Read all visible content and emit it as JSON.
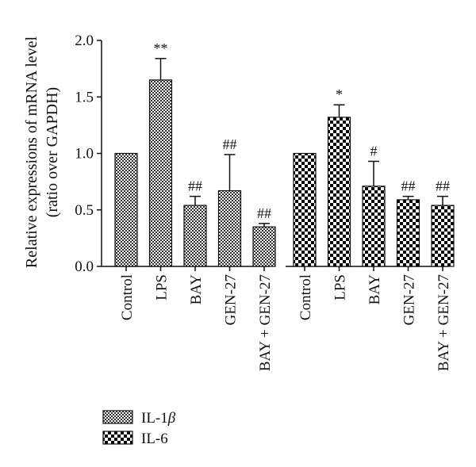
{
  "chart_data": {
    "type": "bar",
    "ylabel_line1": "Relative expressions of mRNA level",
    "ylabel_line2": "(ratio over GAPDH)",
    "ylim": [
      0,
      2.0
    ],
    "y_ticks": [
      "0.0",
      "0.5",
      "1.0",
      "1.5",
      "2.0"
    ],
    "y_tick_values": [
      0,
      0.5,
      1.0,
      1.5,
      2.0
    ],
    "grid": false,
    "legend_position": "bottom-left",
    "groups": [
      {
        "series": "IL-1β",
        "pattern": "fine-checker",
        "categories": [
          "Control",
          "LPS",
          "BAY",
          "GEN-27",
          "BAY + GEN-27"
        ],
        "values": [
          1.0,
          1.65,
          0.54,
          0.67,
          0.35
        ],
        "errors": [
          0,
          0.19,
          0.08,
          0.32,
          0.03
        ],
        "annotations": [
          "",
          "**",
          "##",
          "##",
          "##"
        ]
      },
      {
        "series": "IL-6",
        "pattern": "coarse-checker",
        "categories": [
          "Control",
          "LPS",
          "BAY",
          "GEN-27",
          "BAY + GEN-27"
        ],
        "values": [
          1.0,
          1.32,
          0.71,
          0.59,
          0.54
        ],
        "errors": [
          0,
          0.11,
          0.22,
          0.03,
          0.08
        ],
        "annotations": [
          "",
          "*",
          "#",
          "##",
          "##"
        ]
      }
    ],
    "legend": [
      {
        "text_main": "IL-1",
        "text_greek": "β",
        "pattern": "fine-checker"
      },
      {
        "text_main": "IL-6",
        "text_greek": "",
        "pattern": "coarse-checker"
      }
    ],
    "colors": {
      "ink": "#111111",
      "fill_light": "#ffffff"
    }
  }
}
